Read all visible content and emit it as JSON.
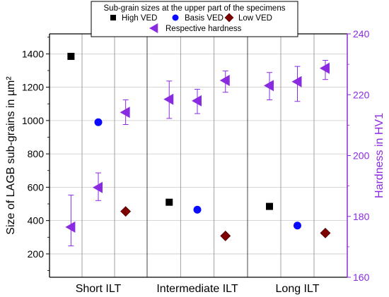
{
  "chart_data": {
    "type": "scatter",
    "categories": [
      "Short ILT",
      "Intermediate ILT",
      "Long ILT"
    ],
    "ylabel": "Size of LAGB sub-grains in µm²",
    "y2label": "Hardness in HV1",
    "ylim": [
      60,
      1520
    ],
    "y2lim": [
      160,
      240
    ],
    "yticks": [
      200,
      400,
      600,
      800,
      1000,
      1200,
      1400
    ],
    "y2ticks": [
      160,
      180,
      200,
      220,
      240
    ],
    "grid": true,
    "legend_position": "top-center",
    "legend": {
      "title": "Sub-grain sizes at the upper part of the specimens",
      "entries": [
        {
          "key": "high",
          "label": "High VED"
        },
        {
          "key": "basis",
          "label": "Basis VED"
        },
        {
          "key": "low",
          "label": "Low VED"
        },
        {
          "key": "hardness",
          "label": "Respective hardness"
        }
      ]
    },
    "series": [
      {
        "key": "high",
        "name": "High VED",
        "axis": "left",
        "marker": "square",
        "color": "#000000",
        "points": [
          {
            "category": "Short ILT",
            "value": 1385
          },
          {
            "category": "Intermediate ILT",
            "value": 510
          },
          {
            "category": "Long ILT",
            "value": 485
          }
        ]
      },
      {
        "key": "basis",
        "name": "Basis VED",
        "axis": "left",
        "marker": "circle",
        "color": "#0a0aff",
        "points": [
          {
            "category": "Short ILT",
            "value": 990
          },
          {
            "category": "Intermediate ILT",
            "value": 465
          },
          {
            "category": "Long ILT",
            "value": 370
          }
        ]
      },
      {
        "key": "low",
        "name": "Low VED",
        "axis": "left",
        "marker": "diamond",
        "color": "#7f0000",
        "points": [
          {
            "category": "Short ILT",
            "value": 455
          },
          {
            "category": "Intermediate ILT",
            "value": 308
          },
          {
            "category": "Long ILT",
            "value": 325
          }
        ]
      },
      {
        "key": "hardness",
        "name": "Respective hardness",
        "axis": "right",
        "marker": "triangle-left",
        "color": "#8a2be2",
        "points": [
          {
            "category": "Short ILT",
            "group": "High VED",
            "value": 176.5,
            "err_low": 170.3,
            "err_high": 187
          },
          {
            "category": "Short ILT",
            "group": "Basis VED",
            "value": 189.5,
            "err_low": 185.2,
            "err_high": 194.3
          },
          {
            "category": "Short ILT",
            "group": "Low VED",
            "value": 214.2,
            "err_low": 210.2,
            "err_high": 218.3
          },
          {
            "category": "Intermediate ILT",
            "group": "High VED",
            "value": 218.5,
            "err_low": 212.2,
            "err_high": 224.5
          },
          {
            "category": "Intermediate ILT",
            "group": "Basis VED",
            "value": 218,
            "err_low": 213.8,
            "err_high": 221.8
          },
          {
            "category": "Intermediate ILT",
            "group": "Low VED",
            "value": 224.7,
            "err_low": 220.8,
            "err_high": 227.8
          },
          {
            "category": "Long ILT",
            "group": "High VED",
            "value": 223,
            "err_low": 218.3,
            "err_high": 227.3
          },
          {
            "category": "Long ILT",
            "group": "Basis VED",
            "value": 224.3,
            "err_low": 217.8,
            "err_high": 229.3
          },
          {
            "category": "Long ILT",
            "group": "Low VED",
            "value": 228.7,
            "err_low": 225,
            "err_high": 231.3
          }
        ]
      }
    ]
  }
}
